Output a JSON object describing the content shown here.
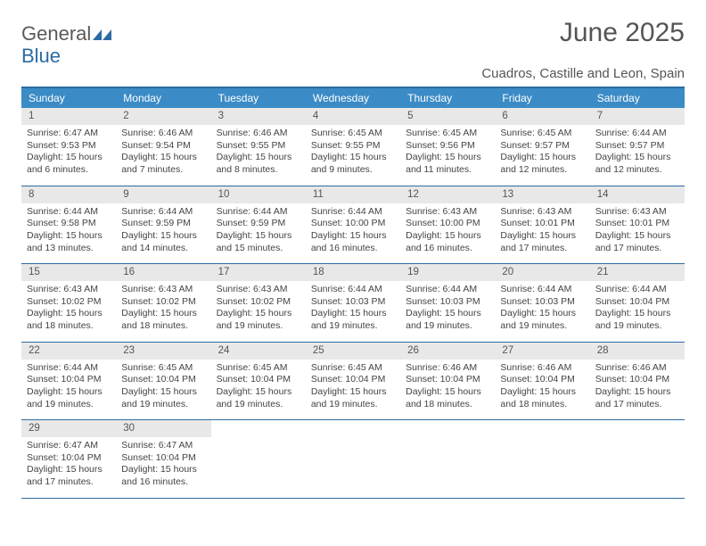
{
  "logo": {
    "line1": "General",
    "line2": "Blue"
  },
  "title": "June 2025",
  "location": "Cuadros, Castille and Leon, Spain",
  "colors": {
    "header_bar": "#3b8bc6",
    "accent_line": "#2b6ca3",
    "daynum_bg": "#e8e8e8",
    "text": "#555555"
  },
  "weekdays": [
    "Sunday",
    "Monday",
    "Tuesday",
    "Wednesday",
    "Thursday",
    "Friday",
    "Saturday"
  ],
  "weeks": [
    [
      {
        "n": "1",
        "sr": "6:47 AM",
        "ss": "9:53 PM",
        "d": "15 hours and 6 minutes."
      },
      {
        "n": "2",
        "sr": "6:46 AM",
        "ss": "9:54 PM",
        "d": "15 hours and 7 minutes."
      },
      {
        "n": "3",
        "sr": "6:46 AM",
        "ss": "9:55 PM",
        "d": "15 hours and 8 minutes."
      },
      {
        "n": "4",
        "sr": "6:45 AM",
        "ss": "9:55 PM",
        "d": "15 hours and 9 minutes."
      },
      {
        "n": "5",
        "sr": "6:45 AM",
        "ss": "9:56 PM",
        "d": "15 hours and 11 minutes."
      },
      {
        "n": "6",
        "sr": "6:45 AM",
        "ss": "9:57 PM",
        "d": "15 hours and 12 minutes."
      },
      {
        "n": "7",
        "sr": "6:44 AM",
        "ss": "9:57 PM",
        "d": "15 hours and 12 minutes."
      }
    ],
    [
      {
        "n": "8",
        "sr": "6:44 AM",
        "ss": "9:58 PM",
        "d": "15 hours and 13 minutes."
      },
      {
        "n": "9",
        "sr": "6:44 AM",
        "ss": "9:59 PM",
        "d": "15 hours and 14 minutes."
      },
      {
        "n": "10",
        "sr": "6:44 AM",
        "ss": "9:59 PM",
        "d": "15 hours and 15 minutes."
      },
      {
        "n": "11",
        "sr": "6:44 AM",
        "ss": "10:00 PM",
        "d": "15 hours and 16 minutes."
      },
      {
        "n": "12",
        "sr": "6:43 AM",
        "ss": "10:00 PM",
        "d": "15 hours and 16 minutes."
      },
      {
        "n": "13",
        "sr": "6:43 AM",
        "ss": "10:01 PM",
        "d": "15 hours and 17 minutes."
      },
      {
        "n": "14",
        "sr": "6:43 AM",
        "ss": "10:01 PM",
        "d": "15 hours and 17 minutes."
      }
    ],
    [
      {
        "n": "15",
        "sr": "6:43 AM",
        "ss": "10:02 PM",
        "d": "15 hours and 18 minutes."
      },
      {
        "n": "16",
        "sr": "6:43 AM",
        "ss": "10:02 PM",
        "d": "15 hours and 18 minutes."
      },
      {
        "n": "17",
        "sr": "6:43 AM",
        "ss": "10:02 PM",
        "d": "15 hours and 19 minutes."
      },
      {
        "n": "18",
        "sr": "6:44 AM",
        "ss": "10:03 PM",
        "d": "15 hours and 19 minutes."
      },
      {
        "n": "19",
        "sr": "6:44 AM",
        "ss": "10:03 PM",
        "d": "15 hours and 19 minutes."
      },
      {
        "n": "20",
        "sr": "6:44 AM",
        "ss": "10:03 PM",
        "d": "15 hours and 19 minutes."
      },
      {
        "n": "21",
        "sr": "6:44 AM",
        "ss": "10:04 PM",
        "d": "15 hours and 19 minutes."
      }
    ],
    [
      {
        "n": "22",
        "sr": "6:44 AM",
        "ss": "10:04 PM",
        "d": "15 hours and 19 minutes."
      },
      {
        "n": "23",
        "sr": "6:45 AM",
        "ss": "10:04 PM",
        "d": "15 hours and 19 minutes."
      },
      {
        "n": "24",
        "sr": "6:45 AM",
        "ss": "10:04 PM",
        "d": "15 hours and 19 minutes."
      },
      {
        "n": "25",
        "sr": "6:45 AM",
        "ss": "10:04 PM",
        "d": "15 hours and 19 minutes."
      },
      {
        "n": "26",
        "sr": "6:46 AM",
        "ss": "10:04 PM",
        "d": "15 hours and 18 minutes."
      },
      {
        "n": "27",
        "sr": "6:46 AM",
        "ss": "10:04 PM",
        "d": "15 hours and 18 minutes."
      },
      {
        "n": "28",
        "sr": "6:46 AM",
        "ss": "10:04 PM",
        "d": "15 hours and 17 minutes."
      }
    ],
    [
      {
        "n": "29",
        "sr": "6:47 AM",
        "ss": "10:04 PM",
        "d": "15 hours and 17 minutes."
      },
      {
        "n": "30",
        "sr": "6:47 AM",
        "ss": "10:04 PM",
        "d": "15 hours and 16 minutes."
      },
      null,
      null,
      null,
      null,
      null
    ]
  ],
  "labels": {
    "sunrise": "Sunrise:",
    "sunset": "Sunset:",
    "daylight": "Daylight:"
  }
}
